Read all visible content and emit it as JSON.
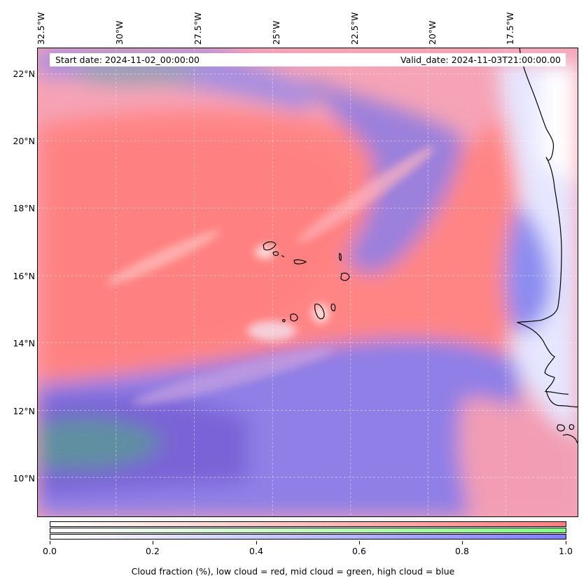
{
  "header": {
    "start_date": "Start date: 2024-11-02_00:00:00",
    "valid_date": "Valid_date: 2024-11-03T21:00:00.00"
  },
  "map": {
    "lon_labels": [
      "32.5°W",
      "30°W",
      "27.5°W",
      "25°W",
      "22.5°W",
      "20°W",
      "17.5°W"
    ],
    "lat_labels": [
      "22°N",
      "20°N",
      "18°N",
      "16°N",
      "14°N",
      "12°N",
      "10°N"
    ],
    "colors": {
      "low_cloud": "#ff7f7f",
      "mid_cloud": "#7fff7f",
      "high_cloud": "#7f7fff",
      "coastline": "#000000"
    }
  },
  "colorbar": {
    "ticks": [
      "0.0",
      "0.2",
      "0.4",
      "0.6",
      "0.8",
      "1.0"
    ],
    "label": "Cloud fraction (%), low cloud = red, mid cloud = green, high cloud = blue"
  }
}
